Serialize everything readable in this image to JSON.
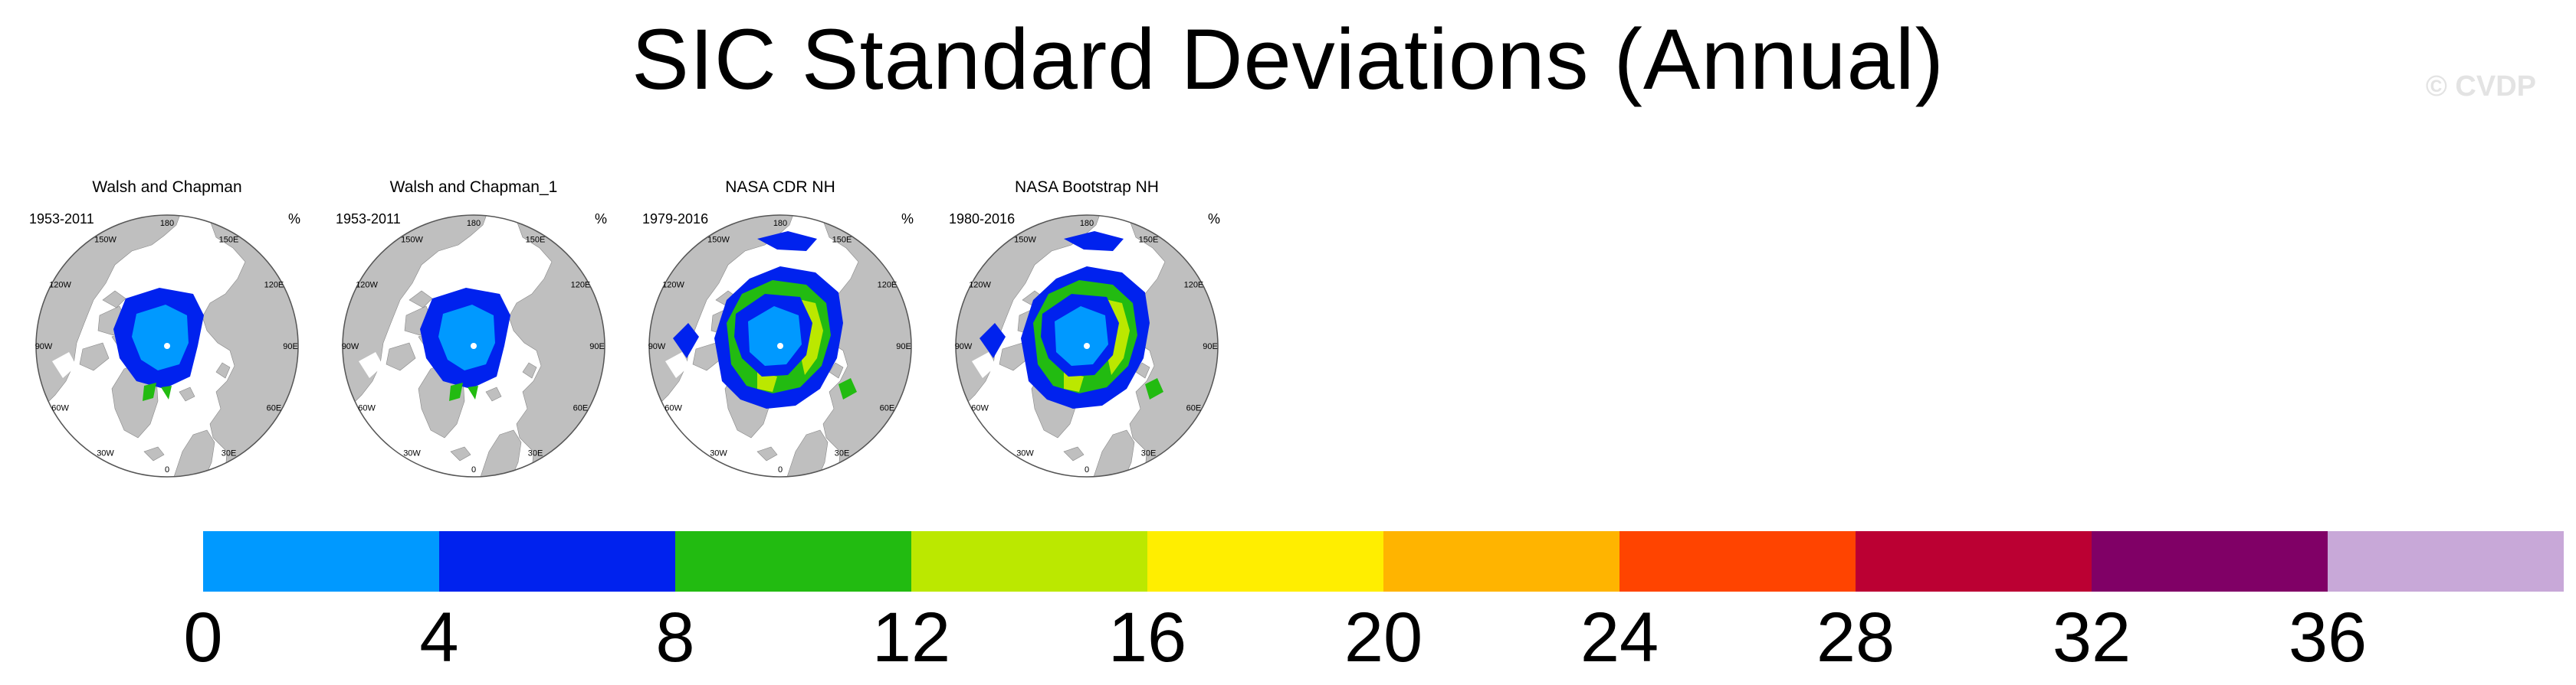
{
  "title": "SIC Standard Deviations (Annual)",
  "watermark": "© CVDP",
  "panels": [
    {
      "title": "Walsh and Chapman",
      "years": "1953-2011",
      "unit": "%",
      "variant": "walsh"
    },
    {
      "title": "Walsh and Chapman_1",
      "years": "1953-2011",
      "unit": "%",
      "variant": "walsh"
    },
    {
      "title": "NASA CDR NH",
      "years": "1979-2016",
      "unit": "%",
      "variant": "nasa"
    },
    {
      "title": "NASA Bootstrap NH",
      "years": "1980-2016",
      "unit": "%",
      "variant": "nasa"
    }
  ],
  "longitude_labels": [
    "180",
    "150E",
    "120E",
    "90E",
    "60E",
    "30E",
    "0",
    "30W",
    "60W",
    "90W",
    "120W",
    "150W"
  ],
  "colors": {
    "land": "#bfbfbf",
    "ocean": "#ffffff",
    "outline": "#555555"
  },
  "colorbar": {
    "colors": [
      "#0099ff",
      "#0022ee",
      "#22bb11",
      "#bbe800",
      "#ffee00",
      "#ffb400",
      "#ff4400",
      "#bb0033",
      "#800066",
      "#c8a8d8"
    ],
    "tick_labels": [
      "0",
      "4",
      "8",
      "12",
      "16",
      "20",
      "24",
      "28",
      "32",
      "36"
    ]
  }
}
